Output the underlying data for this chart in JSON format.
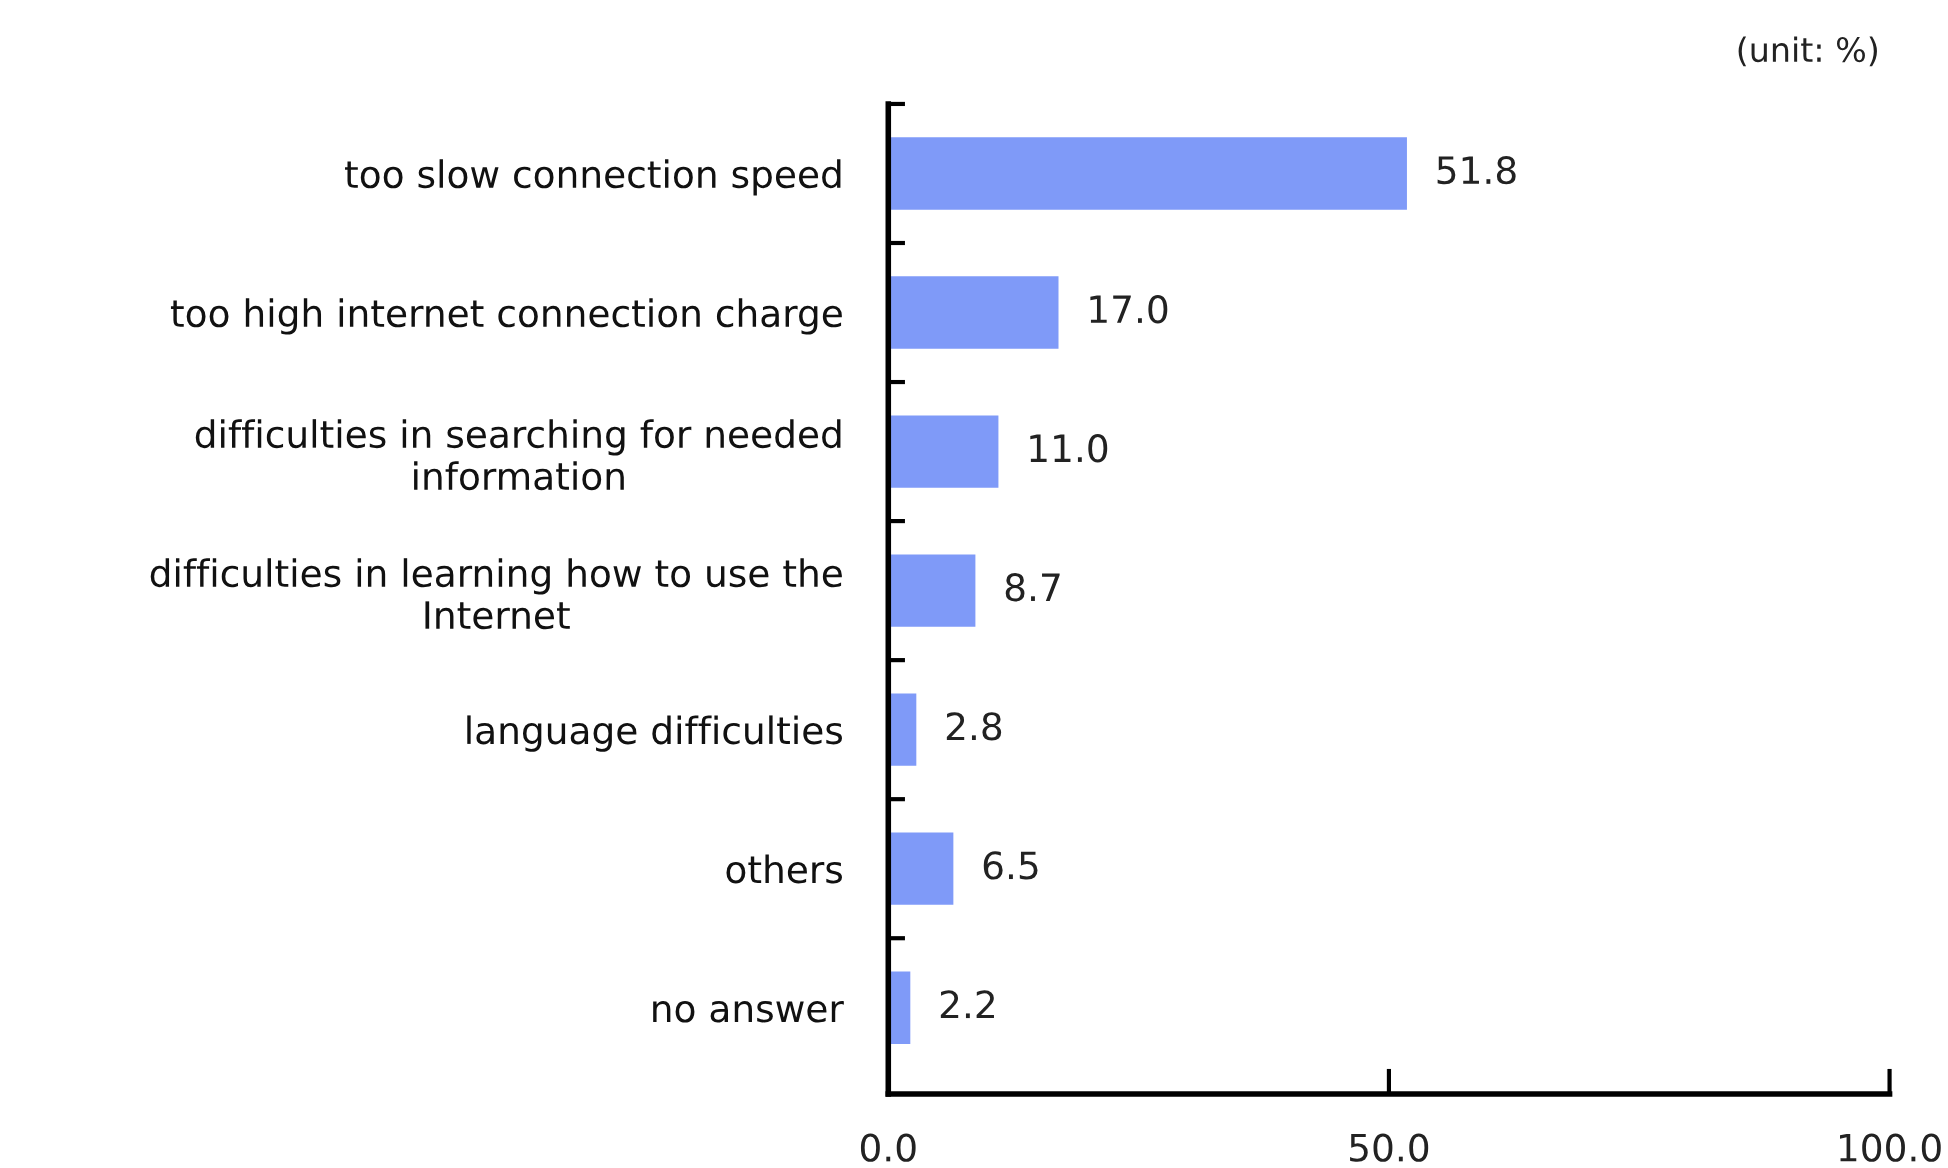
{
  "chart_data": {
    "type": "bar",
    "orientation": "horizontal",
    "categories": [
      "too slow connection speed",
      "too high internet connection charge",
      "difficulties in searching for needed\ninformation",
      "difficulties in learning how to use the\nInternet",
      "language difficulties",
      "others",
      "no answer"
    ],
    "values": [
      51.8,
      17.0,
      11.0,
      8.7,
      2.8,
      6.5,
      2.2
    ],
    "value_labels": [
      "51.8",
      "17.0",
      "11.0",
      "8.7",
      "2.8",
      "6.5",
      "2.2"
    ],
    "color": "#7f9af8",
    "xlim": [
      0,
      100
    ],
    "xticks": [
      {
        "value": 0,
        "label": "0.0"
      },
      {
        "value": 50,
        "label": "50.0"
      },
      {
        "value": 100,
        "label": "100.0"
      }
    ],
    "grid": false,
    "legend": false,
    "annotations": [
      "(unit: %)"
    ]
  }
}
